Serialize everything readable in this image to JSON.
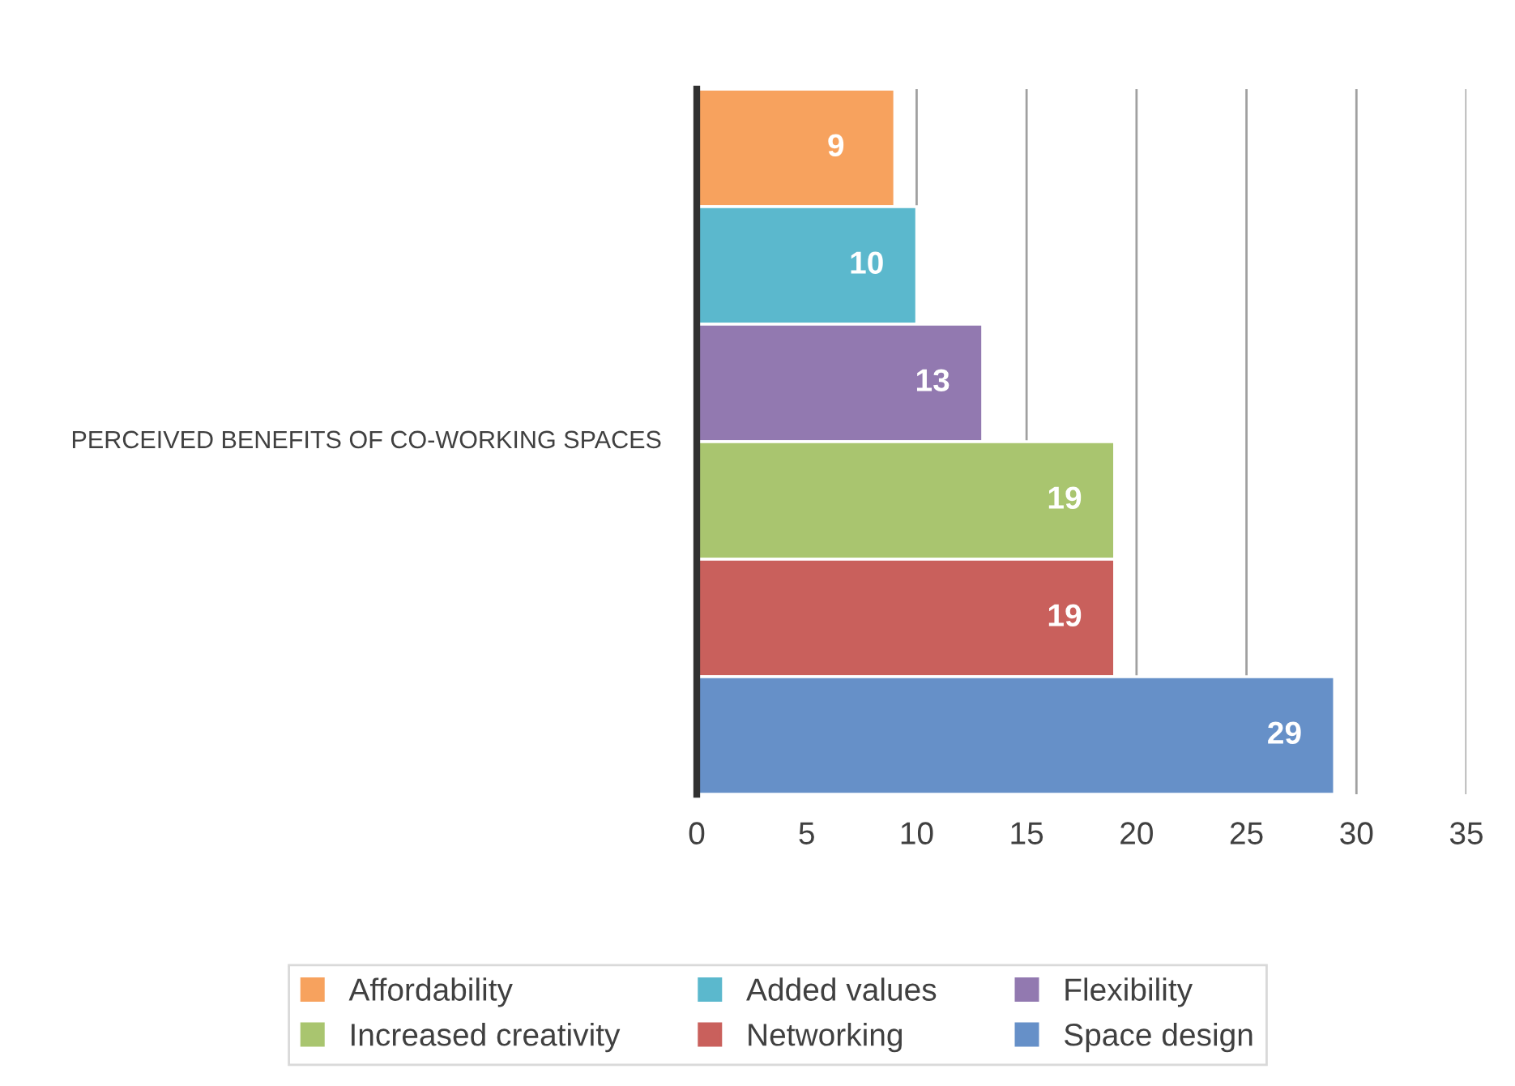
{
  "chart_data": {
    "type": "bar",
    "orientation": "horizontal",
    "ylabel": "PERCEIVED BENEFITS OF CO-WORKING SPACES",
    "categories": [
      null,
      null,
      null,
      null,
      null,
      null
    ],
    "series": [
      {
        "name": "Affordability",
        "color": "#f7a25e",
        "values": [
          9,
          null,
          null,
          null,
          null,
          null
        ]
      },
      {
        "name": "Added values",
        "color": "#5bb8cd",
        "values": [
          null,
          10,
          null,
          null,
          null,
          null
        ]
      },
      {
        "name": "Flexibility",
        "color": "#9279b0",
        "values": [
          null,
          null,
          13,
          null,
          null,
          null
        ]
      },
      {
        "name": "Increased creativity",
        "color": "#a9c56f",
        "values": [
          null,
          null,
          null,
          19,
          null,
          null
        ]
      },
      {
        "name": "Networking",
        "color": "#c9605c",
        "values": [
          null,
          null,
          null,
          null,
          19,
          null
        ]
      },
      {
        "name": "Space design",
        "color": "#6690c8",
        "values": [
          null,
          null,
          null,
          null,
          null,
          29
        ]
      }
    ],
    "xlim": [
      0,
      35
    ],
    "xticks": [
      0,
      5,
      10,
      15,
      20,
      25,
      30,
      35
    ],
    "grid": "x",
    "data_labels": true,
    "legend": "bottom"
  }
}
